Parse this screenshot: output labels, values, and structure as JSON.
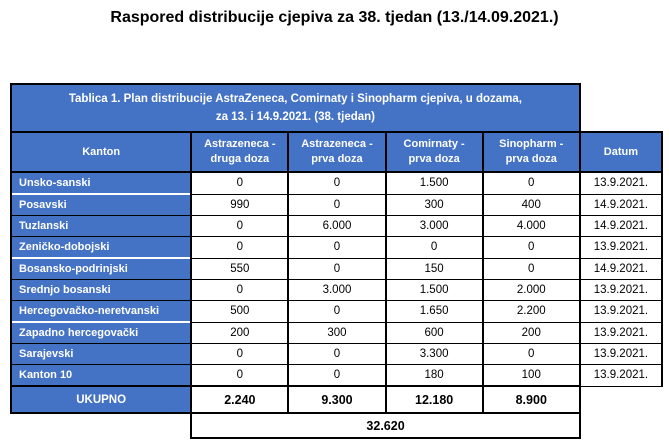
{
  "page_title": "Raspored distribucije cjepiva za 38. tjedan (13./14.09.2021.)",
  "table": {
    "caption_line1": "Tablica 1. Plan distribucije AstraZeneca, Comirnaty i Sinopharm cjepiva, u dozama,",
    "caption_line2": "za 13. i 14.9.2021. (38. tjedan)",
    "columns": [
      "Kanton",
      "Astrazeneca -\ndruga doza",
      "Astrazeneca -\nprva doza",
      "Comirnaty -\nprva doza",
      "Sinopharm -\nprva doza",
      "Datum"
    ],
    "rows": [
      {
        "label": "Unsko-sanski",
        "values": [
          "0",
          "0",
          "1.500",
          "0"
        ],
        "date": "13.9.2021."
      },
      {
        "label": "Posavski",
        "values": [
          "990",
          "0",
          "300",
          "400"
        ],
        "date": "14.9.2021."
      },
      {
        "label": "Tuzlanski",
        "values": [
          "0",
          "6.000",
          "3.000",
          "4.000"
        ],
        "date": "14.9.2021."
      },
      {
        "label": "Zeničko-dobojski",
        "values": [
          "0",
          "0",
          "0",
          "0"
        ],
        "date": "13.9.2021."
      },
      {
        "label": "Bosansko-podrinjski",
        "values": [
          "550",
          "0",
          "150",
          "0"
        ],
        "date": "14.9.2021."
      },
      {
        "label": "Srednjo bosanski",
        "values": [
          "0",
          "3.000",
          "1.500",
          "2.000"
        ],
        "date": "13.9.2021."
      },
      {
        "label": "Hercegovačko-neretvanski",
        "values": [
          "500",
          "0",
          "1.650",
          "2.200"
        ],
        "date": "13.9.2021."
      },
      {
        "label": "Zapadno hercegovački",
        "values": [
          "200",
          "300",
          "600",
          "200"
        ],
        "date": "13.9.2021."
      },
      {
        "label": "Sarajevski",
        "values": [
          "0",
          "0",
          "3.300",
          "0"
        ],
        "date": "13.9.2021."
      },
      {
        "label": "Kanton 10",
        "values": [
          "0",
          "0",
          "180",
          "100"
        ],
        "date": "13.9.2021."
      }
    ],
    "totals": {
      "label": "UKUPNO",
      "values": [
        "2.240",
        "9.300",
        "12.180",
        "8.900"
      ],
      "grand_total": "32.620"
    },
    "colors": {
      "header_blue": "#4472C4",
      "border": "#000000",
      "header_text": "#ffffff",
      "body_text": "#000000"
    }
  }
}
